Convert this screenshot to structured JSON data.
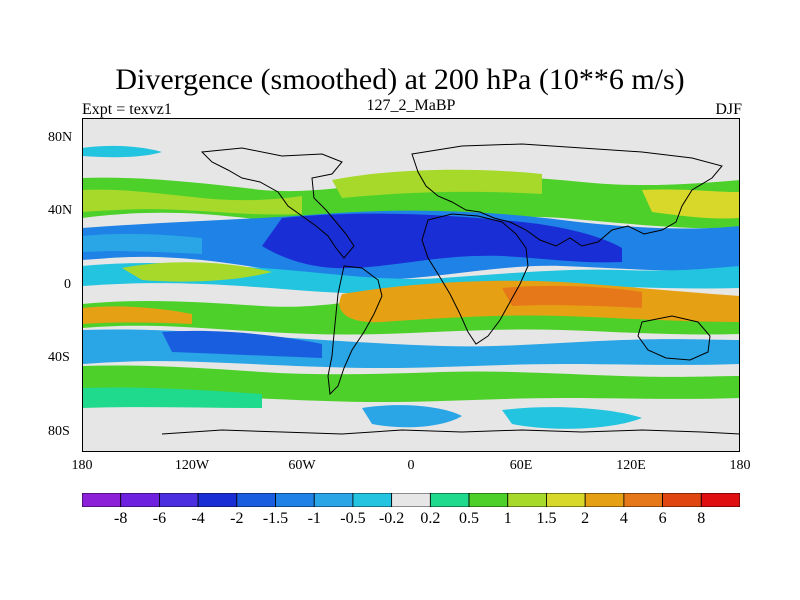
{
  "figure": {
    "title": "Divergence (smoothed) at 200 hPa (10**6 m/s)",
    "left_label": "Expt = texvz1",
    "center_label": "127_2_MaBP",
    "right_label": "DJF"
  },
  "map": {
    "x_ticks": [
      "180",
      "120W",
      "60W",
      "0",
      "60E",
      "120E",
      "180"
    ],
    "y_ticks": [
      "80N",
      "40N",
      "0",
      "40S",
      "80S"
    ],
    "background_color": "#e6e6e6"
  },
  "colorbar": {
    "labels": [
      "-8",
      "-6",
      "-4",
      "-2",
      "-1.5",
      "-1",
      "-0.5",
      "-0.2",
      "0.2",
      "0.5",
      "1",
      "1.5",
      "2",
      "4",
      "6",
      "8"
    ],
    "colors": [
      "#8c1fd8",
      "#6e22e0",
      "#4b2ee0",
      "#1a2ed6",
      "#1a5ee0",
      "#1f82e6",
      "#2aa5e6",
      "#22c4e0",
      "#e6e6e6",
      "#1fd98c",
      "#4dd12a",
      "#a6d92a",
      "#d8d82a",
      "#e6a014",
      "#e6781a",
      "#e0460f",
      "#e00f0f"
    ]
  },
  "chart_data": {
    "type": "heatmap",
    "title": "Divergence (smoothed) at 200 hPa (10**6 m/s)",
    "subtitle": "127_2_MaBP",
    "annotations": [
      "Expt = texvz1",
      "DJF"
    ],
    "x_ticks": [
      "180",
      "120W",
      "60W",
      "0",
      "60E",
      "120E",
      "180"
    ],
    "y_ticks": [
      "80N",
      "40N",
      "0",
      "40S",
      "80S"
    ],
    "lon_range": [
      -180,
      180
    ],
    "lat_range": [
      -90,
      90
    ],
    "levels": [
      -8,
      -6,
      -4,
      -2,
      -1.5,
      -1,
      -0.5,
      -0.2,
      0.2,
      0.5,
      1,
      1.5,
      2,
      4,
      6,
      8
    ],
    "bands": [
      {
        "lat": 45,
        "value": 0.5
      },
      {
        "lat": 20,
        "value": -2
      },
      {
        "lat": 5,
        "value": -1
      },
      {
        "lat": -8,
        "value": 2
      },
      {
        "lat": -20,
        "value": 1
      },
      {
        "lat": -35,
        "value": -1
      },
      {
        "lat": -50,
        "value": 0.5
      },
      {
        "lat": -70,
        "value": -0.5
      }
    ]
  }
}
